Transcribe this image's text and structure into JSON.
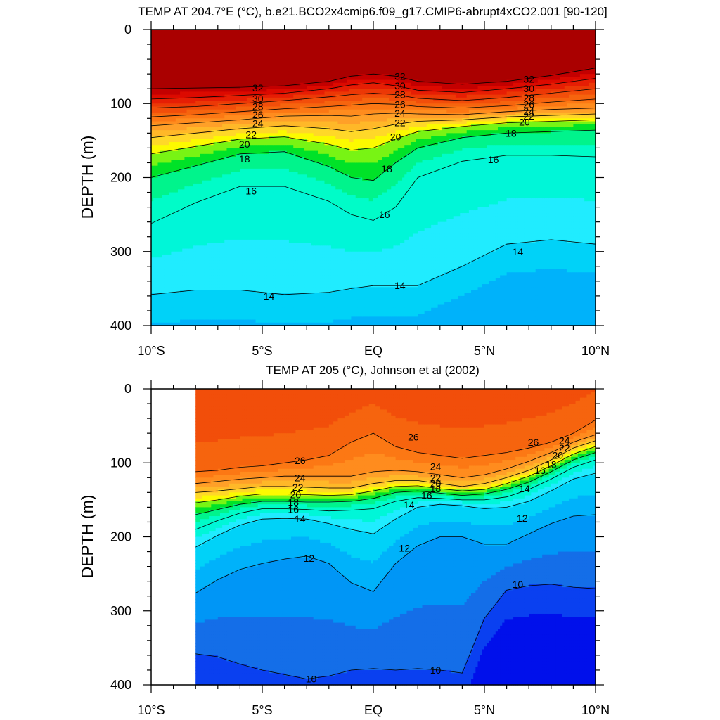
{
  "chart_data": [
    {
      "type": "contour",
      "title": "TEMP AT 204.7°E (°C), b.e21.BCO2x4cmip6.f09_g17.CMIP6-abrupt4xCO2.001 [90-120]",
      "ylabel": "DEPTH (m)",
      "xlabel": "",
      "xlim": [
        -10,
        10
      ],
      "ylim": [
        0,
        400
      ],
      "y_inverted": true,
      "x_ticks": [
        -10,
        -5,
        0,
        5,
        10
      ],
      "x_ticklabels": [
        "10°S",
        "5°S",
        "EQ",
        "5°N",
        "10°N"
      ],
      "y_ticks": [
        0,
        100,
        200,
        300,
        400
      ],
      "y_ticklabels": [
        "0",
        "100",
        "200",
        "300",
        "400"
      ],
      "x_nodes": [
        -10,
        -8,
        -6,
        -4,
        -2,
        -1,
        0,
        1,
        2,
        4,
        6,
        8,
        10
      ],
      "isotherm_depths": [
        {
          "temp": 32,
          "depths": [
            80,
            79,
            78,
            76,
            70,
            63,
            60,
            63,
            70,
            74,
            70,
            62,
            52
          ]
        },
        {
          "temp": 30,
          "depths": [
            94,
            92,
            89,
            86,
            80,
            75,
            72,
            76,
            82,
            85,
            80,
            74,
            66
          ]
        },
        {
          "temp": 28,
          "depths": [
            106,
            104,
            100,
            96,
            91,
            88,
            86,
            88,
            93,
            96,
            92,
            86,
            80
          ]
        },
        {
          "temp": 26,
          "depths": [
            118,
            115,
            111,
            107,
            104,
            102,
            100,
            101,
            104,
            106,
            103,
            98,
            94
          ]
        },
        {
          "temp": 24,
          "depths": [
            130,
            126,
            122,
            117,
            116,
            117,
            114,
            113,
            114,
            115,
            111,
            108,
            106
          ]
        },
        {
          "temp": 22,
          "depths": [
            146,
            140,
            134,
            130,
            134,
            138,
            134,
            128,
            124,
            122,
            118,
            116,
            114
          ]
        },
        {
          "temp": 20,
          "depths": [
            168,
            158,
            148,
            145,
            155,
            163,
            160,
            148,
            138,
            131,
            126,
            124,
            122
          ]
        },
        {
          "temp": 18,
          "depths": [
            200,
            184,
            168,
            165,
            185,
            200,
            204,
            180,
            160,
            146,
            140,
            138,
            136
          ]
        },
        {
          "temp": 16,
          "depths": [
            262,
            234,
            212,
            212,
            232,
            250,
            258,
            240,
            200,
            178,
            170,
            170,
            172
          ]
        },
        {
          "temp": 14,
          "depths": [
            358,
            352,
            352,
            358,
            355,
            350,
            346,
            346,
            346,
            320,
            290,
            284,
            290
          ]
        }
      ],
      "contour_labels": [
        {
          "text": "32",
          "x": -5.2,
          "y": 79
        },
        {
          "text": "30",
          "x": -5.2,
          "y": 93
        },
        {
          "text": "28",
          "x": -5.2,
          "y": 104
        },
        {
          "text": "26",
          "x": -5.2,
          "y": 115
        },
        {
          "text": "24",
          "x": -5.2,
          "y": 127
        },
        {
          "text": "22",
          "x": -5.5,
          "y": 142
        },
        {
          "text": "20",
          "x": -5.8,
          "y": 155
        },
        {
          "text": "18",
          "x": -5.8,
          "y": 175
        },
        {
          "text": "16",
          "x": -5.5,
          "y": 218
        },
        {
          "text": "14",
          "x": -4.7,
          "y": 360
        },
        {
          "text": "32",
          "x": 1.2,
          "y": 63
        },
        {
          "text": "30",
          "x": 1.2,
          "y": 76
        },
        {
          "text": "28",
          "x": 1.2,
          "y": 88
        },
        {
          "text": "26",
          "x": 1.2,
          "y": 101
        },
        {
          "text": "24",
          "x": 1.2,
          "y": 113
        },
        {
          "text": "22",
          "x": 1.2,
          "y": 126
        },
        {
          "text": "20",
          "x": 1.0,
          "y": 145
        },
        {
          "text": "18",
          "x": 0.6,
          "y": 188
        },
        {
          "text": "16",
          "x": 0.5,
          "y": 250
        },
        {
          "text": "14",
          "x": 1.2,
          "y": 346
        },
        {
          "text": "32",
          "x": 7.0,
          "y": 67
        },
        {
          "text": "30",
          "x": 7.0,
          "y": 80
        },
        {
          "text": "28",
          "x": 7.0,
          "y": 92
        },
        {
          "text": "26",
          "x": 7.0,
          "y": 101
        },
        {
          "text": "24",
          "x": 7.0,
          "y": 110
        },
        {
          "text": "22",
          "x": 7.0,
          "y": 117
        },
        {
          "text": "20",
          "x": 6.8,
          "y": 125
        },
        {
          "text": "18",
          "x": 6.2,
          "y": 140
        },
        {
          "text": "16",
          "x": 5.4,
          "y": 176
        },
        {
          "text": "14",
          "x": 6.5,
          "y": 300
        }
      ]
    },
    {
      "type": "contour",
      "title": "TEMP AT 205 (°C), Johnson et al (2002)",
      "ylabel": "DEPTH (m)",
      "xlabel": "",
      "xlim": [
        -10,
        10
      ],
      "ylim": [
        0,
        400
      ],
      "y_inverted": true,
      "data_start_x": -8,
      "x_ticks": [
        -10,
        -5,
        0,
        5,
        10
      ],
      "x_ticklabels": [
        "10°S",
        "5°S",
        "EQ",
        "5°N",
        "10°N"
      ],
      "y_ticks": [
        0,
        100,
        200,
        300,
        400
      ],
      "y_ticklabels": [
        "0",
        "100",
        "200",
        "300",
        "400"
      ],
      "x_nodes": [
        -8,
        -7,
        -6,
        -5,
        -4,
        -3,
        -2,
        -1,
        0,
        1,
        2,
        3,
        4,
        5,
        6,
        7,
        8,
        9,
        10
      ],
      "isotherm_depths": [
        {
          "temp": 26,
          "depths": [
            112,
            110,
            106,
            104,
            100,
            96,
            90,
            72,
            60,
            78,
            86,
            90,
            94,
            90,
            86,
            80,
            72,
            60,
            42
          ]
        },
        {
          "temp": 24,
          "depths": [
            128,
            125,
            122,
            120,
            118,
            118,
            118,
            118,
            112,
            110,
            112,
            116,
            120,
            116,
            108,
            98,
            86,
            72,
            62
          ]
        },
        {
          "temp": 22,
          "depths": [
            140,
            138,
            135,
            132,
            132,
            133,
            134,
            134,
            128,
            124,
            124,
            128,
            132,
            128,
            120,
            110,
            96,
            80,
            70
          ]
        },
        {
          "temp": 20,
          "depths": [
            154,
            150,
            145,
            142,
            142,
            143,
            144,
            143,
            138,
            132,
            131,
            135,
            138,
            136,
            128,
            118,
            104,
            88,
            78
          ]
        },
        {
          "temp": 18,
          "depths": [
            170,
            163,
            156,
            152,
            152,
            153,
            153,
            152,
            148,
            140,
            138,
            141,
            144,
            142,
            136,
            126,
            112,
            96,
            86
          ]
        },
        {
          "temp": 16,
          "depths": [
            190,
            178,
            168,
            162,
            162,
            163,
            165,
            164,
            162,
            152,
            147,
            148,
            150,
            150,
            146,
            136,
            122,
            106,
            96
          ]
        },
        {
          "temp": 14,
          "depths": [
            214,
            198,
            184,
            176,
            175,
            176,
            182,
            190,
            196,
            176,
            160,
            156,
            158,
            162,
            160,
            152,
            138,
            122,
            114
          ]
        },
        {
          "temp": 12,
          "depths": [
            276,
            258,
            244,
            236,
            230,
            226,
            236,
            262,
            274,
            236,
            212,
            200,
            200,
            210,
            210,
            196,
            182,
            172,
            170
          ]
        },
        {
          "temp": 10,
          "depths": [
            358,
            362,
            372,
            380,
            386,
            392,
            388,
            380,
            378,
            380,
            378,
            380,
            384,
            310,
            272,
            266,
            264,
            268,
            270
          ]
        }
      ],
      "contour_labels": [
        {
          "text": "26",
          "x": -3.3,
          "y": 97
        },
        {
          "text": "24",
          "x": -3.3,
          "y": 120
        },
        {
          "text": "22",
          "x": -3.4,
          "y": 133
        },
        {
          "text": "20",
          "x": -3.5,
          "y": 143
        },
        {
          "text": "18",
          "x": -3.6,
          "y": 153
        },
        {
          "text": "16",
          "x": -3.6,
          "y": 163
        },
        {
          "text": "14",
          "x": -3.3,
          "y": 176
        },
        {
          "text": "12",
          "x": -2.9,
          "y": 229
        },
        {
          "text": "10",
          "x": -2.8,
          "y": 392
        },
        {
          "text": "26",
          "x": 1.8,
          "y": 65
        },
        {
          "text": "24",
          "x": 2.8,
          "y": 105
        },
        {
          "text": "22",
          "x": 2.8,
          "y": 120
        },
        {
          "text": "20",
          "x": 2.8,
          "y": 128
        },
        {
          "text": "18",
          "x": 2.8,
          "y": 135
        },
        {
          "text": "16",
          "x": 2.4,
          "y": 144
        },
        {
          "text": "14",
          "x": 1.6,
          "y": 157
        },
        {
          "text": "12",
          "x": 1.4,
          "y": 215
        },
        {
          "text": "10",
          "x": 2.8,
          "y": 380
        },
        {
          "text": "26",
          "x": 7.2,
          "y": 72
        },
        {
          "text": "24",
          "x": 8.6,
          "y": 70
        },
        {
          "text": "22",
          "x": 8.6,
          "y": 80
        },
        {
          "text": "20",
          "x": 8.3,
          "y": 90
        },
        {
          "text": "18",
          "x": 8.0,
          "y": 102
        },
        {
          "text": "16",
          "x": 7.5,
          "y": 110
        },
        {
          "text": "14",
          "x": 6.8,
          "y": 135
        },
        {
          "text": "12",
          "x": 6.7,
          "y": 175
        },
        {
          "text": "10",
          "x": 6.5,
          "y": 264
        }
      ]
    }
  ]
}
